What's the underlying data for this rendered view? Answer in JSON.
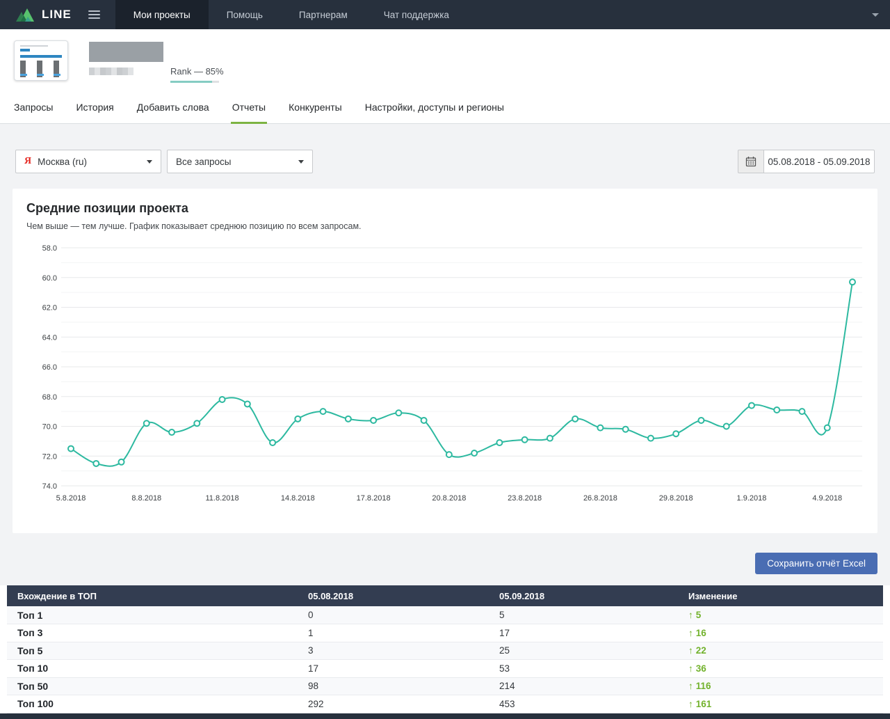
{
  "navbar": {
    "brand": "LINE",
    "items": [
      {
        "label": "Мои проекты",
        "active": true
      },
      {
        "label": "Помощь",
        "active": false
      },
      {
        "label": "Партнерам",
        "active": false
      },
      {
        "label": "Чат поддержка",
        "active": false
      }
    ]
  },
  "project": {
    "rank_label": "Rank — 85%",
    "rank_percent": 85
  },
  "tabs": [
    {
      "label": "Запросы",
      "active": false
    },
    {
      "label": "История",
      "active": false
    },
    {
      "label": "Добавить слова",
      "active": false
    },
    {
      "label": "Отчеты",
      "active": true
    },
    {
      "label": "Конкуренты",
      "active": false
    },
    {
      "label": "Настройки, доступы и регионы",
      "active": false
    }
  ],
  "filters": {
    "search_engine_icon": "Я",
    "search_engine": "Москва (ru)",
    "query_group": "Все запросы",
    "date_range": "05.08.2018 - 05.09.2018"
  },
  "chart": {
    "title": "Средние позиции проекта",
    "subtitle": "Чем выше — тем лучше. График показывает среднюю позицию по всем запросам."
  },
  "chart_data": {
    "type": "line",
    "title": "Средние позиции проекта",
    "x": [
      "5.8.2018",
      "6.8.2018",
      "7.8.2018",
      "8.8.2018",
      "9.8.2018",
      "10.8.2018",
      "11.8.2018",
      "12.8.2018",
      "13.8.2018",
      "14.8.2018",
      "15.8.2018",
      "16.8.2018",
      "17.8.2018",
      "18.8.2018",
      "19.8.2018",
      "20.8.2018",
      "21.8.2018",
      "22.8.2018",
      "23.8.2018",
      "24.8.2018",
      "25.8.2018",
      "26.8.2018",
      "27.8.2018",
      "28.8.2018",
      "29.8.2018",
      "30.8.2018",
      "31.8.2018",
      "1.9.2018",
      "2.9.2018",
      "3.9.2018",
      "4.9.2018",
      "5.9.2018"
    ],
    "values": [
      71.5,
      72.5,
      72.4,
      69.8,
      70.4,
      69.8,
      68.2,
      68.5,
      71.1,
      69.5,
      69.0,
      69.5,
      69.6,
      69.1,
      69.6,
      71.9,
      71.8,
      71.1,
      70.9,
      70.8,
      69.5,
      70.1,
      70.2,
      70.8,
      70.5,
      69.6,
      70.0,
      68.6,
      68.9,
      69.0,
      70.1,
      60.3
    ],
    "y_ticks": [
      58,
      60,
      62,
      64,
      66,
      68,
      70,
      72,
      74
    ],
    "x_tick_labels": [
      "5.8.2018",
      "8.8.2018",
      "11.8.2018",
      "14.8.2018",
      "17.8.2018",
      "20.8.2018",
      "23.8.2018",
      "26.8.2018",
      "29.8.2018",
      "1.9.2018",
      "4.9.2018"
    ],
    "x_tick_every": 3,
    "ylim": [
      58,
      74
    ],
    "y_axis_inverted": true,
    "grid": true,
    "legend": "none",
    "line_color": "#2db9a0",
    "marker_fill": "#ffffff"
  },
  "report": {
    "save_button": "Сохранить отчёт Excel"
  },
  "table": {
    "headers": [
      "Вхождение в ТОП",
      "05.08.2018",
      "05.09.2018",
      "Изменение"
    ],
    "rows": [
      {
        "label": "Топ 1",
        "d1": "0",
        "d2": "5",
        "change": "5",
        "direction": "up"
      },
      {
        "label": "Топ 3",
        "d1": "1",
        "d2": "17",
        "change": "16",
        "direction": "up"
      },
      {
        "label": "Топ 5",
        "d1": "3",
        "d2": "25",
        "change": "22",
        "direction": "up"
      },
      {
        "label": "Топ 10",
        "d1": "17",
        "d2": "53",
        "change": "36",
        "direction": "up"
      },
      {
        "label": "Топ 50",
        "d1": "98",
        "d2": "214",
        "change": "116",
        "direction": "up"
      },
      {
        "label": "Топ 100",
        "d1": "292",
        "d2": "453",
        "change": "161",
        "direction": "up"
      }
    ],
    "change_color": "#72b22c",
    "up_arrow": "↑"
  }
}
